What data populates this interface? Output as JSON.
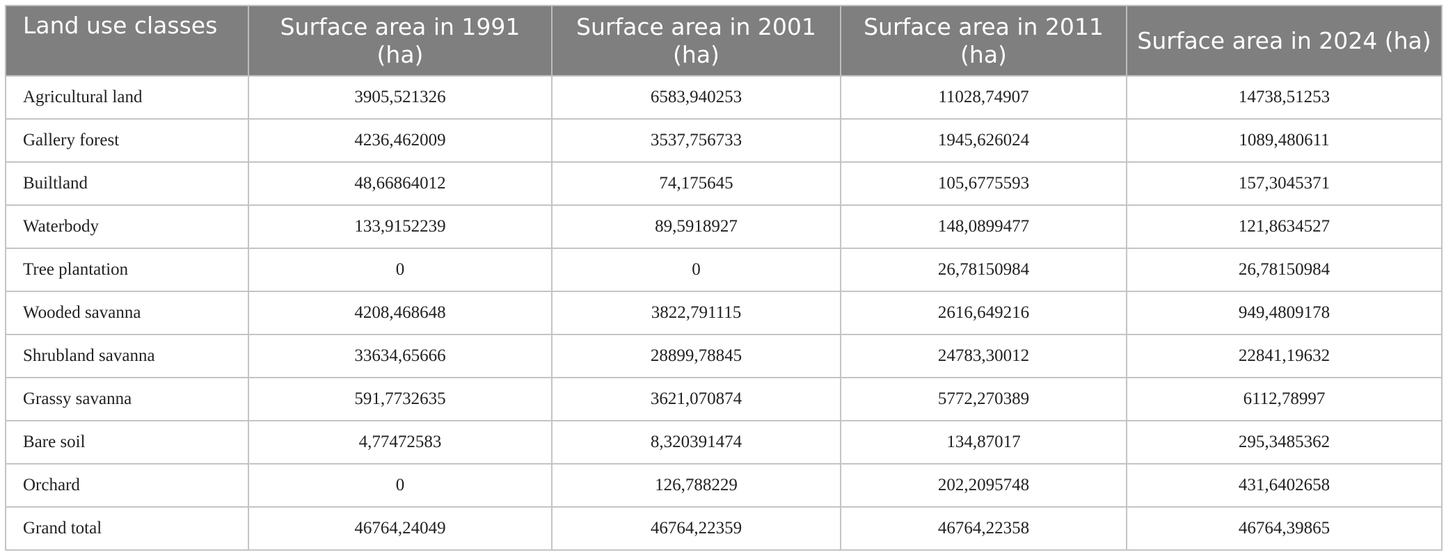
{
  "table": {
    "header": [
      "Land use classes",
      "Surface area in 1991 (ha)",
      "Surface area in 2001 (ha)",
      "Surface area in 2011 (ha)",
      "Surface area in 2024 (ha)"
    ],
    "rows": [
      [
        "Agricultural land",
        "3905,521326",
        "6583,940253",
        "11028,74907",
        "14738,51253"
      ],
      [
        "Gallery forest",
        "4236,462009",
        "3537,756733",
        "1945,626024",
        "1089,480611"
      ],
      [
        "Builtland",
        "48,66864012",
        "74,175645",
        "105,6775593",
        "157,3045371"
      ],
      [
        "Waterbody",
        "133,9152239",
        "89,5918927",
        "148,0899477",
        "121,8634527"
      ],
      [
        "Tree plantation",
        "0",
        "0",
        "26,78150984",
        "26,78150984"
      ],
      [
        "Wooded savanna",
        "4208,468648",
        "3822,791115",
        "2616,649216",
        "949,4809178"
      ],
      [
        "Shrubland savanna",
        "33634,65666",
        "28899,78845",
        "24783,30012",
        "22841,19632"
      ],
      [
        "Grassy savanna",
        "591,7732635",
        "3621,070874",
        "5772,270389",
        "6112,78997"
      ],
      [
        "Bare soil",
        "4,77472583",
        "8,320391474",
        "134,87017",
        "295,3485362"
      ],
      [
        "Orchard",
        "0",
        "126,788229",
        "202,2095748",
        "431,6402658"
      ],
      [
        "Grand total",
        "46764,24049",
        "46764,22359",
        "46764,22358",
        "46764,39865"
      ]
    ]
  }
}
